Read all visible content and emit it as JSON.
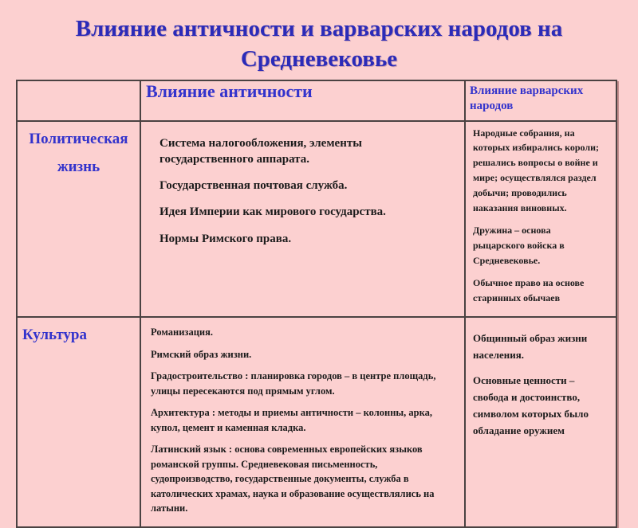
{
  "page": {
    "background_color": "#fcd0d0",
    "accent_blue": "#3333cc",
    "title_blue": "#2b2bb8",
    "body_text_color": "#1b1b1b",
    "border_color": "#4a4242"
  },
  "title": {
    "line1": "Влияние античности и варварских народов на",
    "line2": "Средневековье"
  },
  "table": {
    "header": {
      "col_label": "",
      "col_antiquity": "Влияние античности",
      "col_barbarian": "Влияние варварских народов"
    },
    "rows": [
      {
        "label": "Политическая жизнь",
        "antiquity": [
          "Система налогообложения, элементы государственного аппарата.",
          "Государственная почтовая служба.",
          "Идея Империи как мирового государства.",
          "Нормы Римского права."
        ],
        "barbarian": [
          "Народные собрания, на которых избирались короли; решались вопросы о войне и мире; осуществлялся раздел добычи; проводились наказания виновных.",
          "Дружина – основа рыцарского войска в Средневековье.",
          "Обычное право на основе старинных обычаев"
        ]
      },
      {
        "label": "Культура",
        "antiquity": [
          "Романизация.",
          "Римский образ жизни.",
          "Градостроительство : планировка городов – в центре площадь, улицы пересекаются под прямым углом.",
          "Архитектура : методы и приемы античности – колонны, арка, купол, цемент и каменная кладка.",
          "Латинский язык : основа современных европейских языков романской группы. Средневековая письменность, судопроизводство, государственные документы, служба в католических храмах, наука и образование осуществлялись на латыни."
        ],
        "barbarian": [
          "Общинный образ жизни населения.",
          "Основные ценности – свобода и достоинство, символом которых было обладание оружием"
        ]
      }
    ]
  }
}
